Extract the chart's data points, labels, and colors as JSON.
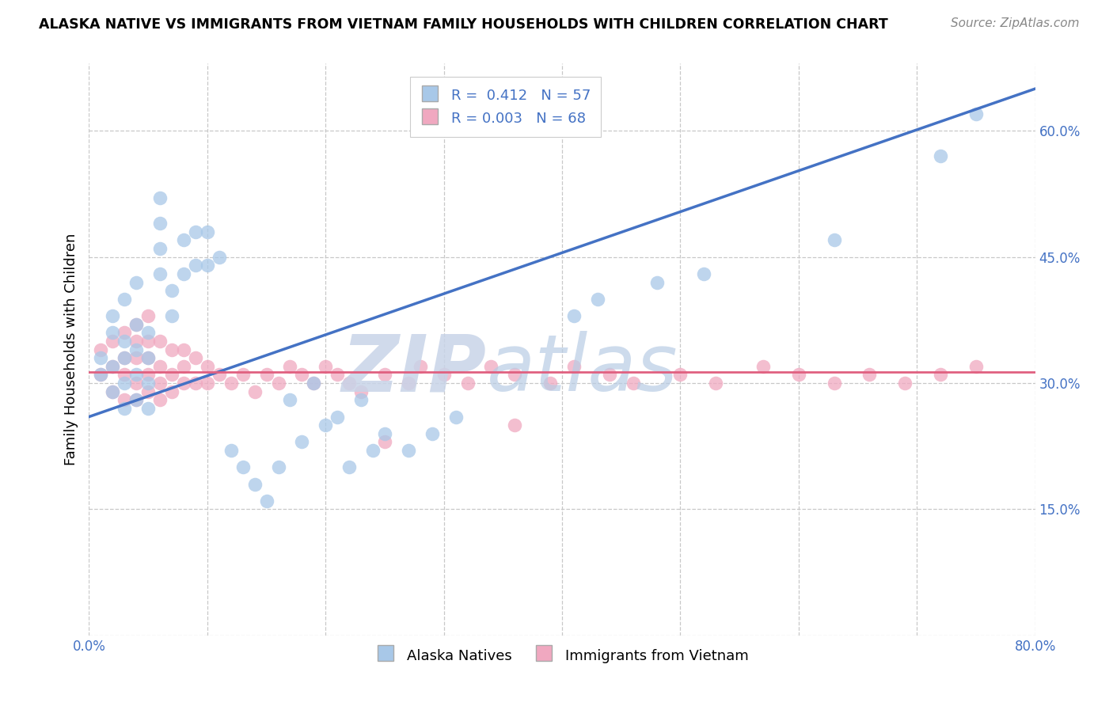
{
  "title": "ALASKA NATIVE VS IMMIGRANTS FROM VIETNAM FAMILY HOUSEHOLDS WITH CHILDREN CORRELATION CHART",
  "source": "Source: ZipAtlas.com",
  "ylabel": "Family Households with Children",
  "xlim": [
    0.0,
    0.8
  ],
  "ylim": [
    0.0,
    0.68
  ],
  "x_ticks": [
    0.0,
    0.1,
    0.2,
    0.3,
    0.4,
    0.5,
    0.6,
    0.7,
    0.8
  ],
  "y_ticks": [
    0.0,
    0.15,
    0.3,
    0.45,
    0.6
  ],
  "r_blue": 0.412,
  "n_blue": 57,
  "r_pink": 0.003,
  "n_pink": 68,
  "blue_color": "#a8c8e8",
  "pink_color": "#f0a8c0",
  "blue_line_color": "#4472c4",
  "pink_line_color": "#e06080",
  "legend_label_blue": "Alaska Natives",
  "legend_label_pink": "Immigrants from Vietnam",
  "blue_scatter_x": [
    0.01,
    0.01,
    0.02,
    0.02,
    0.02,
    0.02,
    0.03,
    0.03,
    0.03,
    0.03,
    0.03,
    0.04,
    0.04,
    0.04,
    0.04,
    0.04,
    0.05,
    0.05,
    0.05,
    0.05,
    0.06,
    0.06,
    0.06,
    0.06,
    0.07,
    0.07,
    0.08,
    0.08,
    0.09,
    0.09,
    0.1,
    0.1,
    0.11,
    0.12,
    0.13,
    0.14,
    0.15,
    0.16,
    0.18,
    0.2,
    0.22,
    0.24,
    0.25,
    0.27,
    0.29,
    0.31,
    0.17,
    0.19,
    0.21,
    0.23,
    0.41,
    0.43,
    0.48,
    0.52,
    0.63,
    0.72,
    0.75
  ],
  "blue_scatter_y": [
    0.31,
    0.33,
    0.29,
    0.32,
    0.36,
    0.38,
    0.27,
    0.3,
    0.33,
    0.35,
    0.4,
    0.28,
    0.31,
    0.34,
    0.37,
    0.42,
    0.27,
    0.3,
    0.33,
    0.36,
    0.43,
    0.46,
    0.49,
    0.52,
    0.38,
    0.41,
    0.43,
    0.47,
    0.44,
    0.48,
    0.44,
    0.48,
    0.45,
    0.22,
    0.2,
    0.18,
    0.16,
    0.2,
    0.23,
    0.25,
    0.2,
    0.22,
    0.24,
    0.22,
    0.24,
    0.26,
    0.28,
    0.3,
    0.26,
    0.28,
    0.38,
    0.4,
    0.42,
    0.43,
    0.47,
    0.57,
    0.62
  ],
  "pink_scatter_x": [
    0.01,
    0.01,
    0.02,
    0.02,
    0.02,
    0.03,
    0.03,
    0.03,
    0.03,
    0.04,
    0.04,
    0.04,
    0.04,
    0.04,
    0.05,
    0.05,
    0.05,
    0.05,
    0.05,
    0.06,
    0.06,
    0.06,
    0.06,
    0.07,
    0.07,
    0.07,
    0.08,
    0.08,
    0.08,
    0.09,
    0.09,
    0.1,
    0.1,
    0.11,
    0.12,
    0.13,
    0.14,
    0.15,
    0.16,
    0.17,
    0.18,
    0.19,
    0.2,
    0.21,
    0.22,
    0.23,
    0.25,
    0.27,
    0.28,
    0.3,
    0.32,
    0.34,
    0.36,
    0.39,
    0.41,
    0.44,
    0.46,
    0.5,
    0.53,
    0.57,
    0.6,
    0.63,
    0.66,
    0.69,
    0.72,
    0.75,
    0.36,
    0.25
  ],
  "pink_scatter_y": [
    0.31,
    0.34,
    0.29,
    0.32,
    0.35,
    0.28,
    0.31,
    0.33,
    0.36,
    0.28,
    0.3,
    0.33,
    0.35,
    0.37,
    0.29,
    0.31,
    0.33,
    0.35,
    0.38,
    0.28,
    0.3,
    0.32,
    0.35,
    0.29,
    0.31,
    0.34,
    0.3,
    0.32,
    0.34,
    0.3,
    0.33,
    0.3,
    0.32,
    0.31,
    0.3,
    0.31,
    0.29,
    0.31,
    0.3,
    0.32,
    0.31,
    0.3,
    0.32,
    0.31,
    0.3,
    0.29,
    0.31,
    0.3,
    0.32,
    0.31,
    0.3,
    0.32,
    0.31,
    0.3,
    0.32,
    0.31,
    0.3,
    0.31,
    0.3,
    0.32,
    0.31,
    0.3,
    0.31,
    0.3,
    0.31,
    0.32,
    0.25,
    0.23
  ],
  "blue_line_x": [
    0.0,
    0.8
  ],
  "blue_line_y": [
    0.26,
    0.65
  ],
  "pink_line_x": [
    0.0,
    0.8
  ],
  "pink_line_y": [
    0.313,
    0.313
  ]
}
